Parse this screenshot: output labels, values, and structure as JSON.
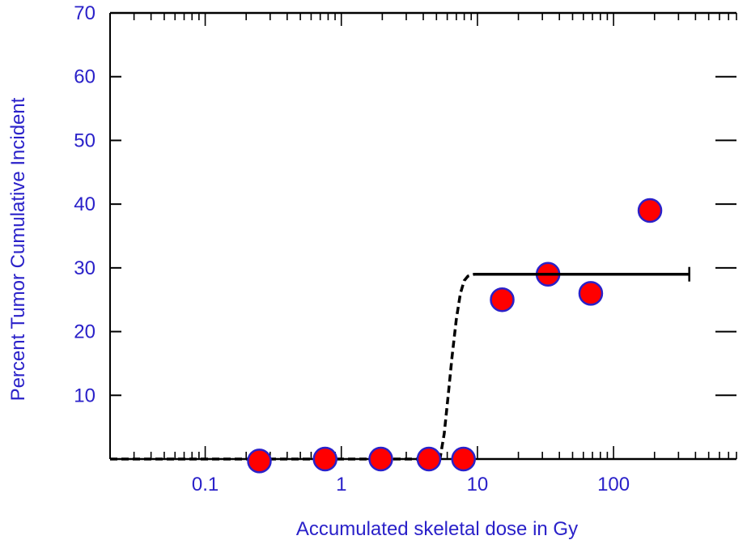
{
  "chart_data": {
    "type": "scatter",
    "xlabel": "Accumulated skeletal dose in Gy",
    "ylabel": "Percent Tumor Cumulative Incident",
    "x_scale": "log",
    "xlim": [
      0.02,
      800
    ],
    "ylim": [
      0,
      70
    ],
    "x_ticks": [
      0.1,
      1,
      10,
      100
    ],
    "x_tick_labels": [
      "0.1",
      "1",
      "10",
      "100"
    ],
    "y_ticks": [
      10,
      20,
      30,
      40,
      50,
      60,
      70
    ],
    "y_tick_labels": [
      "10",
      "20",
      "30",
      "40",
      "50",
      "60",
      "70"
    ],
    "grid": false,
    "series": [
      {
        "kind": "points",
        "x": [
          0.25,
          0.76,
          1.95,
          4.4,
          7.9,
          15.2,
          33,
          68,
          185
        ],
        "y": [
          -0.3,
          0,
          0,
          0,
          0,
          25,
          29,
          26,
          39
        ]
      },
      {
        "kind": "fit-curve",
        "x": [
          0.02,
          5.3,
          5.7,
          6.1,
          6.5,
          7.0,
          7.5,
          8.0,
          8.5,
          9.5,
          360
        ],
        "y": [
          0,
          0,
          4,
          10,
          16,
          22,
          26,
          28,
          28.7,
          29,
          29
        ]
      }
    ],
    "colors": {
      "points_fill": "#ff0000",
      "points_stroke": "#2a21c9",
      "text": "#2a21c9",
      "axes": "#000000"
    }
  }
}
